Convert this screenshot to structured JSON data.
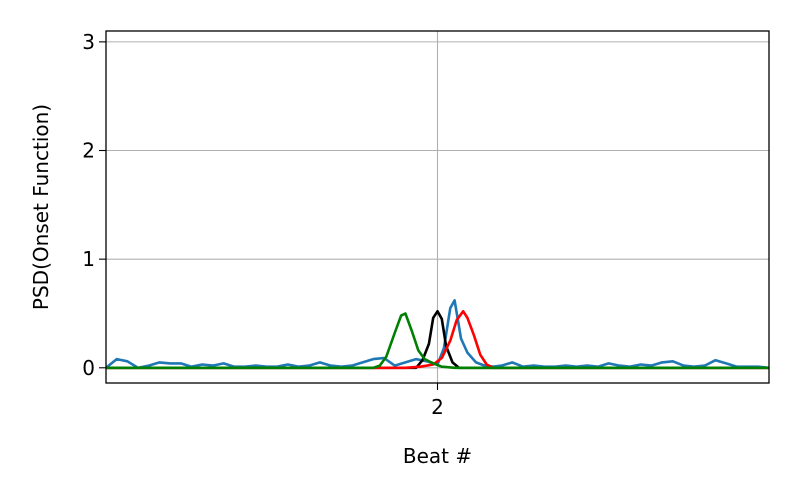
{
  "chart_data": {
    "type": "line",
    "title": "",
    "xlabel": "Beat #",
    "ylabel": "PSD(Onset Function)",
    "xlim": [
      0.45,
      3.55
    ],
    "ylim": [
      -0.14,
      3.1
    ],
    "grid": true,
    "x_ticks": [
      2
    ],
    "x_tick_labels": [
      "2"
    ],
    "y_ticks": [
      0,
      1,
      2,
      3
    ],
    "y_tick_labels": [
      "0",
      "1",
      "2",
      "3"
    ],
    "series": [
      {
        "color": "#1f77b4",
        "x": [
          0.45,
          0.5,
          0.55,
          0.6,
          0.65,
          0.7,
          0.75,
          0.8,
          0.85,
          0.9,
          0.95,
          1.0,
          1.05,
          1.1,
          1.15,
          1.2,
          1.25,
          1.3,
          1.35,
          1.4,
          1.45,
          1.5,
          1.55,
          1.6,
          1.65,
          1.7,
          1.75,
          1.8,
          1.85,
          1.9,
          1.95,
          2.0,
          2.03,
          2.06,
          2.08,
          2.11,
          2.14,
          2.18,
          2.22,
          2.26,
          2.3,
          2.35,
          2.4,
          2.45,
          2.5,
          2.55,
          2.6,
          2.65,
          2.7,
          2.75,
          2.8,
          2.85,
          2.9,
          2.95,
          3.0,
          3.05,
          3.1,
          3.15,
          3.2,
          3.25,
          3.3,
          3.35,
          3.4,
          3.45,
          3.5,
          3.55
        ],
        "values": [
          0.0,
          0.08,
          0.06,
          0.0,
          0.02,
          0.05,
          0.04,
          0.04,
          0.01,
          0.03,
          0.02,
          0.04,
          0.01,
          0.01,
          0.02,
          0.01,
          0.01,
          0.03,
          0.01,
          0.02,
          0.05,
          0.02,
          0.01,
          0.02,
          0.05,
          0.08,
          0.09,
          0.02,
          0.05,
          0.08,
          0.06,
          0.03,
          0.18,
          0.55,
          0.62,
          0.27,
          0.14,
          0.05,
          0.02,
          0.01,
          0.02,
          0.05,
          0.01,
          0.02,
          0.01,
          0.01,
          0.02,
          0.01,
          0.02,
          0.01,
          0.04,
          0.02,
          0.01,
          0.03,
          0.02,
          0.05,
          0.06,
          0.02,
          0.01,
          0.02,
          0.07,
          0.04,
          0.01,
          0.01,
          0.01,
          0.0
        ]
      },
      {
        "color": "#000000",
        "x": [
          0.45,
          1.85,
          1.9,
          1.93,
          1.96,
          1.98,
          2.0,
          2.02,
          2.04,
          2.07,
          2.1,
          2.15,
          3.55
        ],
        "values": [
          0.0,
          0.0,
          0.0,
          0.07,
          0.22,
          0.46,
          0.52,
          0.45,
          0.2,
          0.05,
          0.0,
          0.0,
          0.0
        ]
      },
      {
        "color": "#ff0000",
        "x": [
          0.45,
          1.75,
          1.85,
          1.92,
          1.98,
          2.02,
          2.06,
          2.09,
          2.12,
          2.14,
          2.17,
          2.2,
          2.23,
          2.26,
          3.55
        ],
        "values": [
          0.0,
          0.0,
          0.0,
          0.01,
          0.03,
          0.09,
          0.25,
          0.44,
          0.52,
          0.46,
          0.3,
          0.12,
          0.03,
          0.0,
          0.0
        ]
      },
      {
        "color": "#008000",
        "x": [
          0.45,
          1.7,
          1.73,
          1.76,
          1.8,
          1.83,
          1.85,
          1.88,
          1.91,
          1.94,
          1.98,
          2.02,
          2.08,
          3.55
        ],
        "values": [
          0.0,
          0.0,
          0.02,
          0.1,
          0.32,
          0.48,
          0.5,
          0.34,
          0.16,
          0.08,
          0.04,
          0.01,
          0.0,
          0.0
        ]
      }
    ]
  }
}
